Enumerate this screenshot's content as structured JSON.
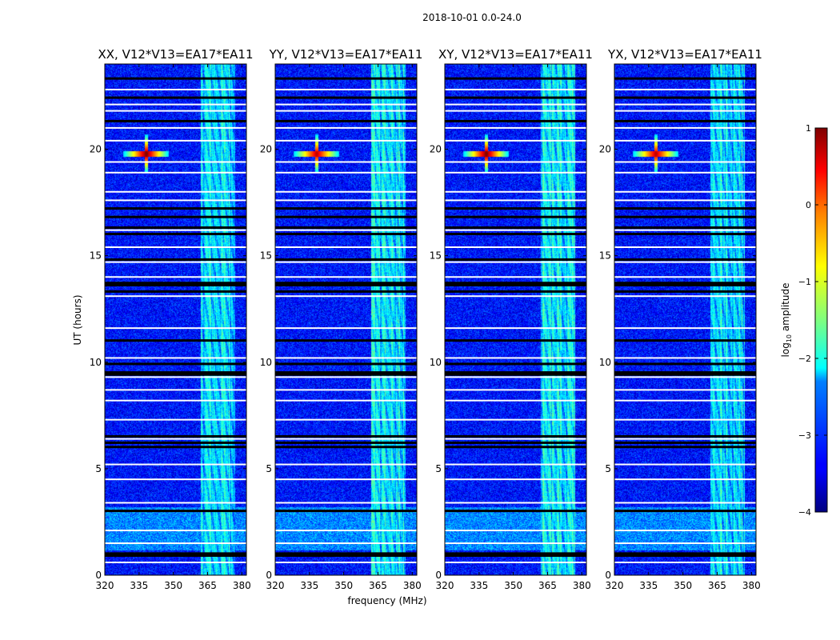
{
  "figure_title": "2018-10-01 0.0-24.0",
  "chart_data": {
    "type": "heatmap",
    "title": "2018-10-01 0.0-24.0",
    "xlabel": "frequency (MHz)",
    "ylabel": "UT (hours)",
    "xlim": [
      320,
      382
    ],
    "ylim": [
      0,
      24
    ],
    "x_ticks": [
      320,
      335,
      350,
      365,
      380
    ],
    "y_ticks": [
      0,
      5,
      10,
      15,
      20
    ],
    "panels": [
      {
        "title": "XX, V12*V13=EA17*EA11"
      },
      {
        "title": "YY, V12*V13=EA17*EA11"
      },
      {
        "title": "XY, V12*V13=EA17*EA11"
      },
      {
        "title": "YX, V12*V13=EA17*EA11"
      }
    ],
    "colorbar": {
      "label_prefix": "log",
      "label_sub": "10",
      "label_suffix": " amplitude",
      "range": [
        -4,
        1
      ],
      "ticks": [
        {
          "value": 1,
          "label": "1"
        },
        {
          "value": 0,
          "label": "0"
        },
        {
          "value": -1,
          "label": "−1"
        },
        {
          "value": -2,
          "label": "−2"
        },
        {
          "value": -3,
          "label": "−3"
        },
        {
          "value": -4,
          "label": "−4"
        }
      ],
      "colormap": "jet"
    },
    "features": {
      "rfi_band_mhz": [
        362,
        377
      ],
      "bright_source": {
        "freq_mhz": 338,
        "ut_hours": 19.8,
        "log_amplitude": 1
      },
      "background_log_amplitude": -3.3,
      "noisy_period_hours": [
        1.2,
        3.2
      ],
      "blank_rows_hours": [
        0.6,
        1.5,
        2.1,
        3.4,
        4.5,
        5.2,
        6.4,
        7.3,
        8.2,
        8.7,
        9.3,
        10.2,
        11.6,
        13.1,
        14.0,
        14.7,
        15.4,
        16.2,
        17.6,
        18.0,
        18.9,
        19.4,
        20.4,
        21.0,
        21.8,
        22.1,
        22.8
      ],
      "flagged_rows_hours": [
        0.9,
        1.0,
        3.0,
        6.0,
        6.2,
        6.5,
        9.4,
        9.5,
        9.9,
        11.0,
        13.3,
        13.6,
        13.7,
        14.8,
        16.0,
        16.3,
        16.8,
        17.2,
        21.3,
        22.4,
        23.3
      ]
    }
  }
}
